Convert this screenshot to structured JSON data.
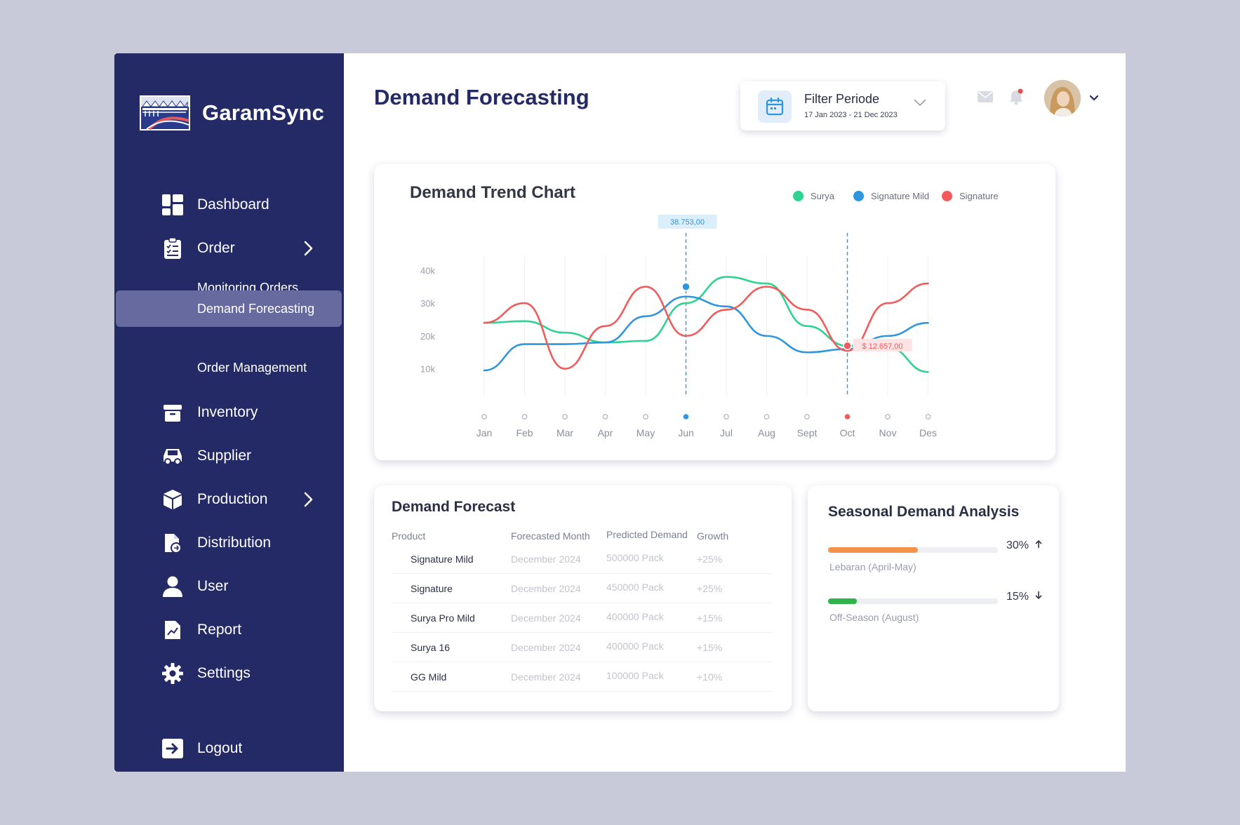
{
  "brand": {
    "name": "GaramSync",
    "logo_icon": "salt-farm-logo"
  },
  "sidebar": {
    "items": [
      {
        "label": "Dashboard",
        "icon": "dashboard-grid-icon"
      },
      {
        "label": "Order",
        "icon": "clipboard-check-icon",
        "expanded": true
      },
      {
        "label": "Monitoring Orders"
      },
      {
        "label": "Demand Forecasting",
        "active": true
      },
      {
        "label": "Order Management"
      },
      {
        "label": "Inventory",
        "icon": "archive-box-icon"
      },
      {
        "label": "Supplier",
        "icon": "truck-icon"
      },
      {
        "label": "Production",
        "icon": "cube-icon"
      },
      {
        "label": "Distribution",
        "icon": "document-transfer-icon"
      },
      {
        "label": "User",
        "icon": "user-icon"
      },
      {
        "label": "Report",
        "icon": "chart-document-icon"
      },
      {
        "label": "Settings",
        "icon": "gear-icon"
      }
    ],
    "logout": {
      "label": "Logout",
      "icon": "logout-icon"
    }
  },
  "header": {
    "title": "Demand Forecasting",
    "filter": {
      "title": "Filter Periode",
      "range": "17 Jan 2023 - 21 Dec 2023",
      "icon": "calendar-icon"
    },
    "icons": [
      "mail-icon",
      "bell-icon",
      "avatar",
      "chevron-down-icon"
    ],
    "notification_color": "#e84c4c"
  },
  "chart_data": {
    "type": "line",
    "title": "Demand Trend Chart",
    "categories": [
      "Jan",
      "Feb",
      "Mar",
      "Apr",
      "May",
      "Jun",
      "Jul",
      "Aug",
      "Sept",
      "Oct",
      "Nov",
      "Des"
    ],
    "y_ticks": [
      "40k",
      "30k",
      "20k",
      "10k"
    ],
    "ylim": [
      5000,
      42000
    ],
    "grid": "vertical",
    "legend_position": "top-right",
    "series": [
      {
        "name": "Surya",
        "color": "#2ed391",
        "values": [
          24000,
          24500,
          21000,
          18000,
          18500,
          30000,
          38000,
          36000,
          23000,
          17000,
          16500,
          9000
        ]
      },
      {
        "name": "Signature Mild",
        "color": "#2f95dd",
        "values": [
          9500,
          17500,
          17500,
          18000,
          26000,
          32000,
          29000,
          20000,
          15000,
          16000,
          20000,
          24000
        ]
      },
      {
        "name": "Signature",
        "color": "#f25b5b",
        "values": [
          24000,
          30000,
          10000,
          23000,
          35000,
          20000,
          28000,
          35000,
          28000,
          15500,
          30000,
          36000
        ]
      }
    ],
    "annotations": [
      {
        "label": "38.753,00",
        "category": "Jun",
        "series": "Signature Mild",
        "value": 35000
      },
      {
        "label": "$ 12.657,00",
        "category": "Oct",
        "series": "Signature",
        "value": 17000
      }
    ]
  },
  "demand_forecast": {
    "title": "Demand Forecast",
    "columns": [
      "Product",
      "Forecasted Month",
      "Predicted Demand",
      "Growth"
    ],
    "rows": [
      {
        "product": "Signature Mild",
        "month": "December 2024",
        "demand": "500000 Pack",
        "growth": "+25%"
      },
      {
        "product": "Signature",
        "month": "December 2024",
        "demand": "450000 Pack",
        "growth": "+25%"
      },
      {
        "product": "Surya Pro Mild",
        "month": "December 2024",
        "demand": "400000 Pack",
        "growth": "+15%"
      },
      {
        "product": "Surya 16",
        "month": "December 2024",
        "demand": "400000 Pack",
        "growth": "+15%"
      },
      {
        "product": "GG Mild",
        "month": "December 2024",
        "demand": "100000 Pack",
        "growth": "+10%"
      }
    ]
  },
  "seasonal": {
    "title": "Seasonal Demand Analysis",
    "items": [
      {
        "label": "Lebaran (April-May)",
        "percent": "30%",
        "fill": 0.53,
        "direction": "up",
        "color": "#f3924a",
        "icon": "arrow-up-icon"
      },
      {
        "label": "Off-Season (August)",
        "percent": "15%",
        "fill": 0.17,
        "direction": "down",
        "color": "#2fb34a",
        "icon": "arrow-down-icon"
      }
    ]
  }
}
